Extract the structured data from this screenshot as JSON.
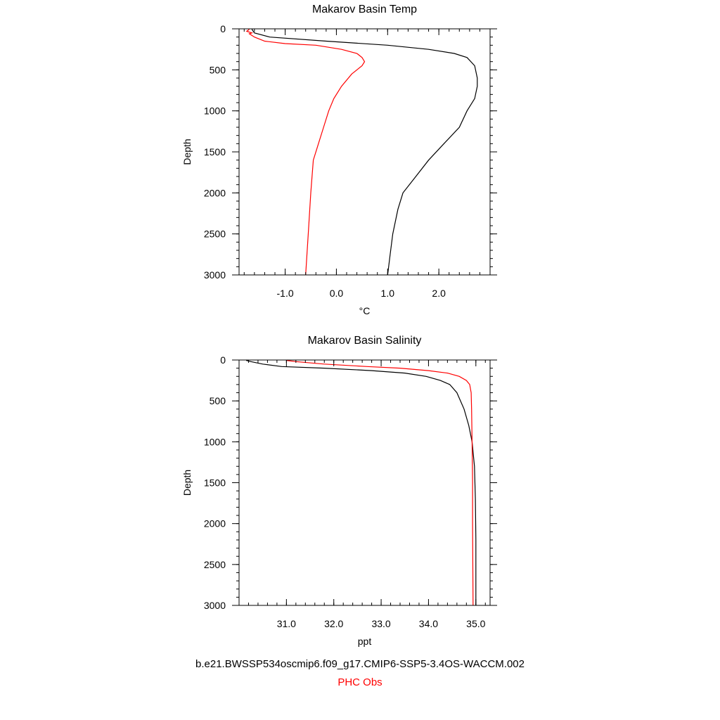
{
  "legend": {
    "model": "b.e21.BWSSP534oscmip6.f09_g17.CMIP6-SSP5-3.4OS-WACCM.002",
    "obs": "PHC Obs",
    "model_color": "#000000",
    "obs_color": "#ff0000"
  },
  "chart_data": [
    {
      "type": "line",
      "title": "Makarov Basin Temp",
      "xlabel": "°C",
      "ylabel": "Depth",
      "xlim": [
        -1.9,
        3.0
      ],
      "ylim": [
        3000,
        0
      ],
      "y_inverted": true,
      "xticks": [
        -1.0,
        0.0,
        1.0,
        2.0
      ],
      "xtick_labels": [
        "-1.0",
        "0.0",
        "1.0",
        "2.0"
      ],
      "x_minor_step": 0.2,
      "yticks": [
        0,
        500,
        1000,
        1500,
        2000,
        2500,
        3000
      ],
      "ytick_labels": [
        "0",
        "500",
        "1000",
        "1500",
        "2000",
        "2500",
        "3000"
      ],
      "y_minor_step": 100,
      "grid": false,
      "series": [
        {
          "name": "b.e21.BWSSP534oscmip6.f09_g17.CMIP6-SSP5-3.4OS-WACCM.002",
          "color": "#000000",
          "x": [
            -1.65,
            -1.6,
            -1.3,
            -0.2,
            1.0,
            1.8,
            2.3,
            2.55,
            2.7,
            2.75,
            2.75,
            2.7,
            2.55,
            2.4,
            2.1,
            1.8,
            1.55,
            1.3,
            1.2,
            1.1,
            1.05,
            1.0
          ],
          "y": [
            5,
            50,
            100,
            150,
            200,
            250,
            300,
            350,
            450,
            600,
            700,
            850,
            1000,
            1200,
            1400,
            1600,
            1800,
            2000,
            2200,
            2500,
            2750,
            3000
          ]
        },
        {
          "name": "PHC Obs",
          "color": "#ff0000",
          "x": [
            -1.7,
            -1.75,
            -1.65,
            -1.7,
            -1.6,
            -1.4,
            -1.0,
            -0.4,
            0.1,
            0.4,
            0.5,
            0.55,
            0.5,
            0.3,
            0.1,
            -0.05,
            -0.15,
            -0.25,
            -0.35,
            -0.45,
            -0.5,
            -0.55,
            -0.6
          ],
          "y": [
            5,
            30,
            50,
            60,
            100,
            150,
            180,
            200,
            250,
            300,
            350,
            400,
            450,
            550,
            700,
            850,
            1000,
            1200,
            1400,
            1600,
            2000,
            2500,
            3000
          ]
        }
      ]
    },
    {
      "type": "line",
      "title": "Makarov Basin Salinity",
      "xlabel": "ppt",
      "ylabel": "Depth",
      "xlim": [
        30.0,
        35.3
      ],
      "ylim": [
        3000,
        0
      ],
      "y_inverted": true,
      "xticks": [
        31.0,
        32.0,
        33.0,
        34.0,
        35.0
      ],
      "xtick_labels": [
        "31.0",
        "32.0",
        "33.0",
        "34.0",
        "35.0"
      ],
      "x_minor_step": 0.2,
      "yticks": [
        0,
        500,
        1000,
        1500,
        2000,
        2500,
        3000
      ],
      "ytick_labels": [
        "0",
        "500",
        "1000",
        "1500",
        "2000",
        "2500",
        "3000"
      ],
      "y_minor_step": 100,
      "grid": false,
      "series": [
        {
          "name": "b.e21.BWSSP534oscmip6.f09_g17.CMIP6-SSP5-3.4OS-WACCM.002",
          "color": "#000000",
          "x": [
            30.15,
            30.25,
            30.5,
            30.9,
            31.8,
            32.8,
            33.5,
            33.95,
            34.25,
            34.45,
            34.6,
            34.75,
            34.85,
            34.92,
            34.97,
            34.99,
            35.0,
            35.0
          ],
          "y": [
            5,
            20,
            50,
            80,
            100,
            130,
            160,
            200,
            250,
            300,
            400,
            600,
            800,
            1000,
            1300,
            1700,
            2200,
            3000
          ]
        },
        {
          "name": "PHC Obs",
          "color": "#ff0000",
          "x": [
            31.0,
            31.2,
            31.8,
            32.7,
            33.4,
            34.0,
            34.4,
            34.65,
            34.8,
            34.87,
            34.9,
            34.91,
            34.92,
            34.93,
            34.93,
            34.94
          ],
          "y": [
            5,
            20,
            50,
            80,
            100,
            130,
            160,
            200,
            250,
            300,
            400,
            600,
            1000,
            1500,
            2000,
            3000
          ]
        }
      ]
    }
  ]
}
